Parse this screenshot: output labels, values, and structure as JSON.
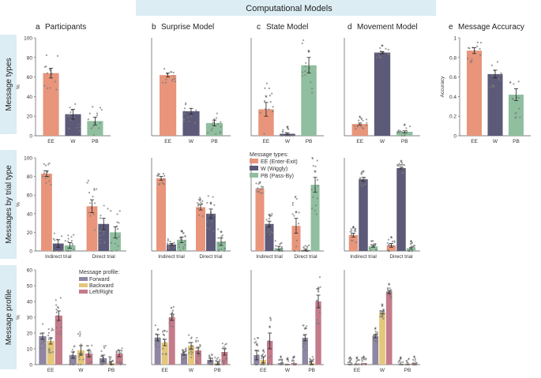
{
  "header": {
    "title": "Computational Models"
  },
  "colors": {
    "EE": "#e8957b",
    "W": "#5c5a78",
    "PB": "#8fbf9e",
    "Forward": "#8f86a3",
    "Backward": "#e3c77a",
    "LeftRight": "#c47b8a",
    "band": "#dcedf4",
    "point": "#7b7b7b"
  },
  "rows": [
    {
      "key": "types",
      "label": "Message types"
    },
    {
      "key": "trial",
      "label": "Messages by trial type"
    },
    {
      "key": "profile",
      "label": "Message profile"
    }
  ],
  "columns": [
    {
      "key": "a",
      "letter": "a",
      "title": "Participants"
    },
    {
      "key": "b",
      "letter": "b",
      "title": "Surprise Model"
    },
    {
      "key": "c",
      "letter": "c",
      "title": "State Model"
    },
    {
      "key": "d",
      "letter": "d",
      "title": "Movement Model"
    },
    {
      "key": "e",
      "letter": "e",
      "title": "Message Accuracy"
    }
  ],
  "legends": {
    "types": {
      "title": "Message types:",
      "items": [
        "EE (Enter-Exit)",
        "W (Wiggly)",
        "PB (Pass-By)"
      ]
    },
    "profile": {
      "title": "Message profile:",
      "items": [
        "Forward",
        "Backward",
        "Left/Right"
      ]
    }
  },
  "chart_data": [
    {
      "id": "a1",
      "type": "bar",
      "title": "Participants",
      "ylabel": "%",
      "ylim": [
        0,
        100
      ],
      "yticks": [
        0,
        20,
        40,
        60,
        80,
        100
      ],
      "categories": [
        "EE",
        "W",
        "PB"
      ],
      "values": [
        64,
        22,
        15
      ],
      "errors": [
        5,
        5,
        4
      ],
      "stars": []
    },
    {
      "id": "b1",
      "type": "bar",
      "title": "Surprise Model",
      "ylim": [
        0,
        100
      ],
      "categories": [
        "EE",
        "W",
        "PB"
      ],
      "values": [
        62,
        25,
        13
      ],
      "errors": [
        2,
        3,
        3
      ],
      "stars": []
    },
    {
      "id": "c1",
      "type": "bar",
      "title": "State Model",
      "ylim": [
        0,
        100
      ],
      "categories": [
        "EE",
        "W",
        "PB"
      ],
      "values": [
        27,
        2,
        72
      ],
      "errors": [
        7,
        1,
        8
      ],
      "stars": [
        "*",
        "*",
        "*"
      ]
    },
    {
      "id": "d1",
      "type": "bar",
      "title": "Movement Model",
      "ylim": [
        0,
        100
      ],
      "categories": [
        "EE",
        "W",
        "PB"
      ],
      "values": [
        12,
        85,
        4
      ],
      "errors": [
        1,
        1,
        1
      ],
      "stars": [
        "*",
        "*",
        "*"
      ]
    },
    {
      "id": "e1",
      "type": "bar",
      "title": "Message Accuracy",
      "ylabel": "Accuracy",
      "ylim": [
        0,
        1
      ],
      "yticks": [
        0,
        0.2,
        0.4,
        0.6,
        0.8,
        1
      ],
      "categories": [
        "EE",
        "W",
        "PB"
      ],
      "values": [
        0.87,
        0.63,
        0.42
      ],
      "errors": [
        0.03,
        0.04,
        0.06
      ],
      "stars": []
    },
    {
      "id": "a2",
      "type": "bar",
      "ylabel": "%",
      "ylim": [
        0,
        100
      ],
      "yticks": [
        0,
        20,
        40,
        60,
        80,
        100
      ],
      "groups": [
        "Indirect trial",
        "Direct trial"
      ],
      "series": [
        "EE",
        "W",
        "PB"
      ],
      "values": [
        [
          83,
          8,
          6
        ],
        [
          48,
          29,
          20
        ]
      ],
      "errors": [
        [
          3,
          4,
          3
        ],
        [
          7,
          6,
          6
        ]
      ],
      "stars": [
        [],
        []
      ]
    },
    {
      "id": "b2",
      "type": "bar",
      "ylim": [
        0,
        100
      ],
      "groups": [
        "Indirect trial",
        "Direct trial"
      ],
      "series": [
        "EE",
        "W",
        "PB"
      ],
      "values": [
        [
          78,
          7,
          12
        ],
        [
          47,
          40,
          10
        ]
      ],
      "errors": [
        [
          2,
          1,
          3
        ],
        [
          3,
          5,
          4
        ]
      ],
      "stars": [
        [
          "",
          "",
          "*"
        ],
        [
          "",
          "*",
          "*"
        ]
      ]
    },
    {
      "id": "c2",
      "type": "bar",
      "ylim": [
        0,
        100
      ],
      "groups": [
        "Indirect trial",
        "Direct trial"
      ],
      "series": [
        "EE",
        "W",
        "PB"
      ],
      "values": [
        [
          67,
          29,
          3
        ],
        [
          27,
          1,
          71
        ]
      ],
      "errors": [
        [
          0,
          3,
          2
        ],
        [
          8,
          1,
          8
        ]
      ],
      "stars": [
        [
          "*",
          "*",
          ""
        ],
        [
          "*",
          "",
          "*"
        ]
      ]
    },
    {
      "id": "d2",
      "type": "bar",
      "ylim": [
        0,
        100
      ],
      "groups": [
        "Indirect trial",
        "Direct trial"
      ],
      "series": [
        "EE",
        "W",
        "PB"
      ],
      "values": [
        [
          17,
          77,
          5
        ],
        [
          6,
          89,
          3
        ]
      ],
      "errors": [
        [
          2,
          2,
          1
        ],
        [
          2,
          1,
          1
        ]
      ],
      "stars": [
        [
          "*",
          "*",
          ""
        ],
        [
          "*",
          "*",
          "*"
        ]
      ]
    },
    {
      "id": "a3",
      "type": "bar",
      "ylabel": "%",
      "ylim": [
        0,
        60
      ],
      "yticks": [
        0,
        10,
        20,
        30,
        40,
        50,
        60
      ],
      "groups": [
        "EE",
        "W",
        "PB"
      ],
      "series": [
        "Forward",
        "Backward",
        "Left/Right"
      ],
      "values": [
        [
          18,
          15,
          31
        ],
        [
          6,
          9,
          7
        ],
        [
          4,
          1,
          7
        ]
      ],
      "errors": [
        [
          2,
          2,
          3
        ],
        [
          2,
          3,
          2
        ],
        [
          2,
          1,
          2
        ]
      ],
      "stars": [
        [],
        [],
        []
      ]
    },
    {
      "id": "b3",
      "type": "bar",
      "ylim": [
        0,
        60
      ],
      "groups": [
        "EE",
        "W",
        "PB"
      ],
      "series": [
        "Forward",
        "Backward",
        "Left/Right"
      ],
      "values": [
        [
          17,
          14,
          30
        ],
        [
          7,
          12,
          9
        ],
        [
          3,
          1,
          8
        ]
      ],
      "errors": [
        [
          2,
          2,
          2
        ],
        [
          1,
          2,
          2
        ],
        [
          1,
          1,
          2
        ]
      ],
      "stars": [
        [],
        [],
        []
      ]
    },
    {
      "id": "c3",
      "type": "bar",
      "ylim": [
        0,
        60
      ],
      "groups": [
        "EE",
        "W",
        "PB"
      ],
      "series": [
        "Forward",
        "Backward",
        "Left/Right"
      ],
      "values": [
        [
          6,
          3,
          15
        ],
        [
          1,
          0,
          1
        ],
        [
          17,
          1,
          40
        ]
      ],
      "errors": [
        [
          3,
          2,
          5
        ],
        [
          0,
          0,
          0
        ],
        [
          2,
          1,
          4
        ]
      ],
      "stars": [
        [
          "*",
          "*",
          "*"
        ],
        [
          "*",
          "*",
          "*"
        ],
        [
          "*",
          "",
          "*"
        ]
      ]
    },
    {
      "id": "d3",
      "type": "bar",
      "ylim": [
        0,
        60
      ],
      "groups": [
        "EE",
        "W",
        "PB"
      ],
      "series": [
        "Forward",
        "Backward",
        "Left/Right"
      ],
      "values": [
        [
          0.5,
          0.5,
          1
        ],
        [
          18,
          33,
          46
        ],
        [
          0.5,
          0.5,
          1
        ]
      ],
      "errors": [
        [
          0,
          0,
          0
        ],
        [
          1,
          1,
          1
        ],
        [
          0,
          0,
          0
        ]
      ],
      "stars": [
        [
          "*",
          "*",
          "*"
        ],
        [
          "*",
          "*",
          "*"
        ],
        [
          "*",
          "",
          "*"
        ]
      ]
    }
  ]
}
